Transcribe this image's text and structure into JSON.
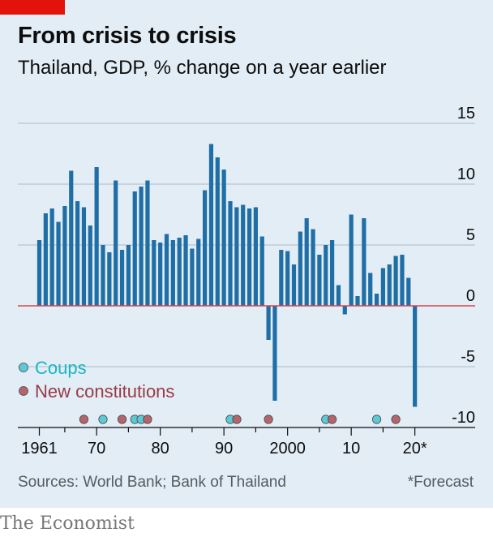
{
  "header": {
    "title": "From crisis to crisis",
    "subtitle": "Thailand, GDP, % change on a year earlier"
  },
  "footer": {
    "source": "Sources: World Bank; Bank of Thailand",
    "forecast_note": "*Forecast",
    "brand": "The Economist"
  },
  "colors": {
    "background": "#e2edf5",
    "bar": "#1f6fa6",
    "zero_line": "#db444b",
    "grid": "#b7c6d2",
    "coups": "#5cc9d6",
    "constitutions": "#b5646c",
    "brand_red": "#e3120b"
  },
  "legend": [
    {
      "name": "Coups",
      "color": "#5cc9d6",
      "text_color": "#1ab5c6"
    },
    {
      "name": "New constitutions",
      "color": "#b5646c",
      "text_color": "#9a3a44"
    }
  ],
  "chart_data": {
    "type": "bar",
    "title": "From crisis to crisis",
    "subtitle": "Thailand, GDP, % change on a year earlier",
    "x": [
      1961,
      1962,
      1963,
      1964,
      1965,
      1966,
      1967,
      1968,
      1969,
      1970,
      1971,
      1972,
      1973,
      1974,
      1975,
      1976,
      1977,
      1978,
      1979,
      1980,
      1981,
      1982,
      1983,
      1984,
      1985,
      1986,
      1987,
      1988,
      1989,
      1990,
      1991,
      1992,
      1993,
      1994,
      1995,
      1996,
      1997,
      1998,
      1999,
      2000,
      2001,
      2002,
      2003,
      2004,
      2005,
      2006,
      2007,
      2008,
      2009,
      2010,
      2011,
      2012,
      2013,
      2014,
      2015,
      2016,
      2017,
      2018,
      2019,
      2020
    ],
    "values": [
      5.4,
      7.6,
      8.0,
      6.9,
      8.2,
      11.1,
      8.6,
      8.1,
      6.6,
      11.4,
      5.0,
      4.4,
      10.3,
      4.6,
      5.0,
      9.4,
      9.8,
      10.3,
      5.4,
      5.2,
      5.9,
      5.4,
      5.6,
      5.8,
      4.7,
      5.5,
      9.5,
      13.3,
      12.2,
      11.2,
      8.6,
      8.1,
      8.3,
      8.0,
      8.1,
      5.7,
      -2.8,
      -7.8,
      4.6,
      4.5,
      3.4,
      6.1,
      7.2,
      6.3,
      4.2,
      5.0,
      5.4,
      1.7,
      -0.7,
      7.5,
      0.8,
      7.2,
      2.7,
      1.0,
      3.1,
      3.4,
      4.1,
      4.2,
      2.3,
      -8.3
    ],
    "forecast_years": [
      2020
    ],
    "coups": [
      1971,
      1976,
      1977,
      1991,
      2006,
      2014
    ],
    "new_constitutions": [
      1968,
      1974,
      1978,
      1991,
      1997,
      2007,
      2017
    ],
    "yticks": [
      15,
      10,
      5,
      0,
      -5,
      -10
    ],
    "ytick_labels": [
      "15",
      "10",
      "5",
      "0",
      "-5",
      "-10"
    ],
    "xticks": [
      1961,
      1970,
      1980,
      1990,
      2000,
      2010,
      2020
    ],
    "xtick_labels": [
      "1961",
      "70",
      "80",
      "90",
      "2000",
      "10",
      "20*"
    ],
    "ylim": [
      -10,
      15
    ],
    "grid": true,
    "legend_position": "bottom-left"
  }
}
